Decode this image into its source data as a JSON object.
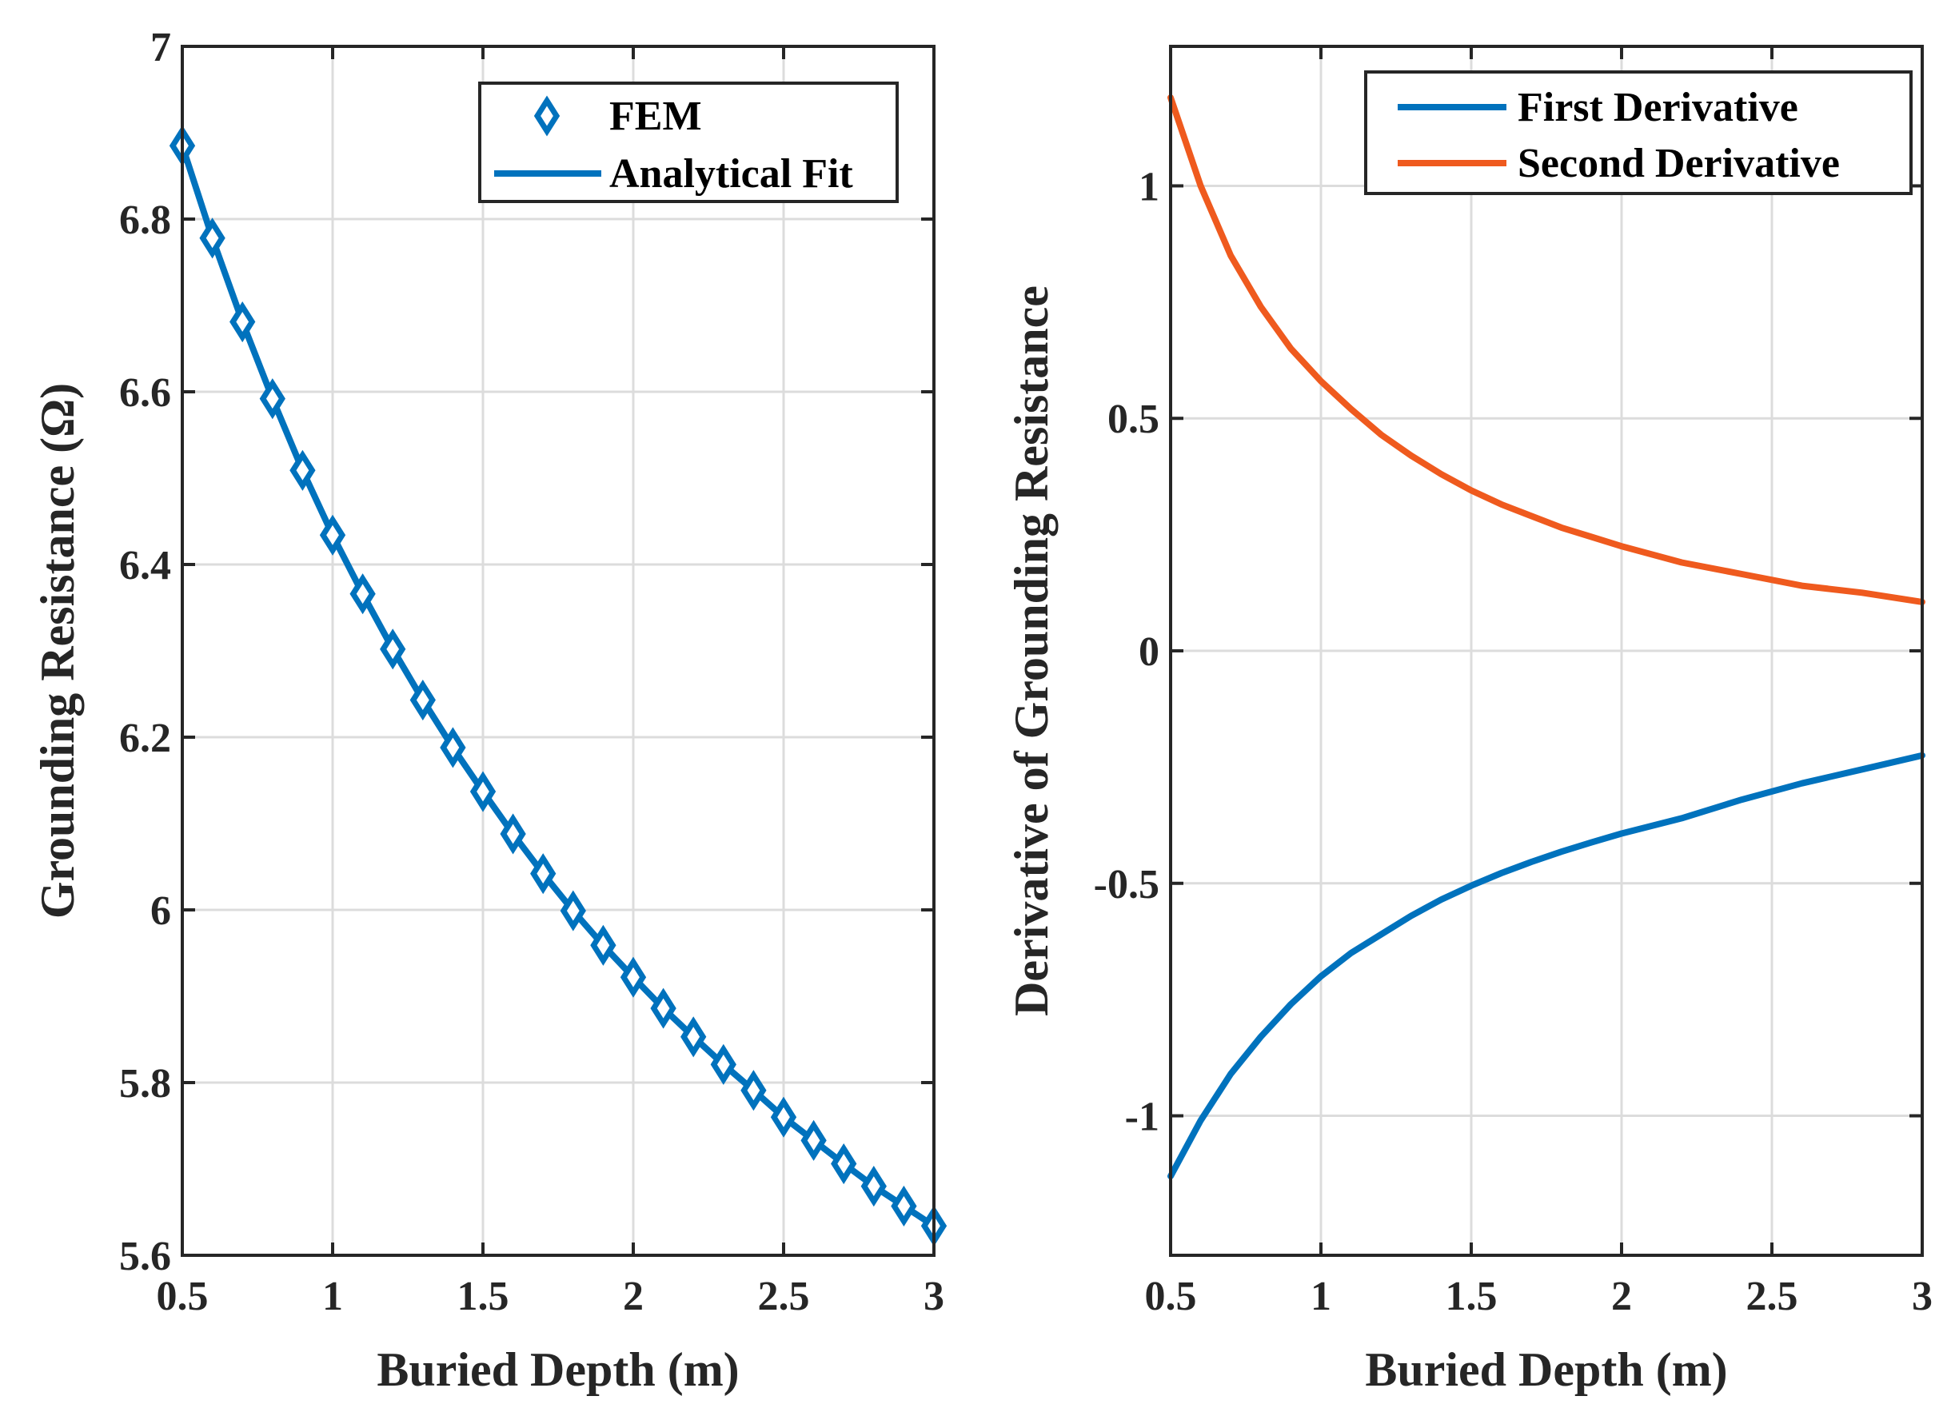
{
  "chart_data": [
    {
      "type": "line",
      "title": "",
      "xlabel": "Buried Depth (m)",
      "ylabel": "Grounding Resistance (Ω)",
      "xlim": [
        0.5,
        3
      ],
      "ylim": [
        5.6,
        7
      ],
      "xticks": [
        0.5,
        1,
        1.5,
        2,
        2.5,
        3
      ],
      "xtick_labels": [
        "0.5",
        "1",
        "1.5",
        "2",
        "2.5",
        "3"
      ],
      "yticks": [
        5.6,
        5.8,
        6,
        6.2,
        6.4,
        6.6,
        6.8,
        7
      ],
      "ytick_labels": [
        "5.6",
        "5.8",
        "6",
        "6.2",
        "6.4",
        "6.6",
        "6.8",
        "7"
      ],
      "grid": true,
      "legend_position": "top-right",
      "series": [
        {
          "name": "FEM",
          "style": "markers",
          "marker": "diamond",
          "color": "#0072BD",
          "x": [
            0.5,
            0.6,
            0.7,
            0.8,
            0.9,
            1.0,
            1.1,
            1.2,
            1.3,
            1.4,
            1.5,
            1.6,
            1.7,
            1.8,
            1.9,
            2.0,
            2.1,
            2.2,
            2.3,
            2.4,
            2.5,
            2.6,
            2.7,
            2.8,
            2.9,
            3.0
          ],
          "y": [
            6.885,
            6.778,
            6.681,
            6.592,
            6.509,
            6.434,
            6.366,
            6.302,
            6.243,
            6.188,
            6.137,
            6.088,
            6.042,
            5.999,
            5.959,
            5.922,
            5.886,
            5.853,
            5.821,
            5.791,
            5.76,
            5.733,
            5.706,
            5.68,
            5.657,
            5.634
          ]
        },
        {
          "name": "Analytical Fit",
          "style": "line",
          "color": "#0072BD",
          "x": [
            0.5,
            0.6,
            0.7,
            0.8,
            0.9,
            1.0,
            1.1,
            1.2,
            1.3,
            1.4,
            1.5,
            1.6,
            1.7,
            1.8,
            1.9,
            2.0,
            2.1,
            2.2,
            2.3,
            2.4,
            2.5,
            2.6,
            2.7,
            2.8,
            2.9,
            3.0
          ],
          "y": [
            6.885,
            6.778,
            6.681,
            6.592,
            6.509,
            6.434,
            6.366,
            6.302,
            6.243,
            6.188,
            6.137,
            6.088,
            6.042,
            5.999,
            5.959,
            5.922,
            5.886,
            5.853,
            5.821,
            5.791,
            5.76,
            5.733,
            5.706,
            5.68,
            5.657,
            5.634
          ]
        }
      ]
    },
    {
      "type": "line",
      "title": "",
      "xlabel": "Buried Depth (m)",
      "ylabel": "Derivative of Grounding Resistance",
      "xlim": [
        0.5,
        3
      ],
      "ylim": [
        -1.3,
        1.3
      ],
      "xticks": [
        0.5,
        1,
        1.5,
        2,
        2.5,
        3
      ],
      "xtick_labels": [
        "0.5",
        "1",
        "1.5",
        "2",
        "2.5",
        "3"
      ],
      "yticks": [
        -1,
        -0.5,
        0,
        0.5,
        1
      ],
      "ytick_labels": [
        "-1",
        "-0.5",
        "0",
        "0.5",
        "1"
      ],
      "grid": true,
      "legend_position": "top-right",
      "series": [
        {
          "name": "First Derivative",
          "style": "line",
          "color": "#0072BD",
          "x": [
            0.5,
            0.6,
            0.7,
            0.8,
            0.9,
            1.0,
            1.1,
            1.2,
            1.3,
            1.4,
            1.5,
            1.6,
            1.7,
            1.8,
            1.9,
            2.0,
            2.2,
            2.4,
            2.6,
            2.8,
            3.0
          ],
          "y": [
            -1.13,
            -1.01,
            -0.91,
            -0.83,
            -0.76,
            -0.7,
            -0.65,
            -0.61,
            -0.57,
            -0.535,
            -0.505,
            -0.478,
            -0.454,
            -0.432,
            -0.412,
            -0.393,
            -0.36,
            -0.32,
            -0.285,
            -0.255,
            -0.225
          ]
        },
        {
          "name": "Second Derivative",
          "style": "line",
          "color": "#EF5A1E",
          "x": [
            0.5,
            0.6,
            0.7,
            0.8,
            0.9,
            1.0,
            1.1,
            1.2,
            1.3,
            1.4,
            1.5,
            1.6,
            1.7,
            1.8,
            1.9,
            2.0,
            2.2,
            2.4,
            2.6,
            2.8,
            3.0
          ],
          "y": [
            1.19,
            1.0,
            0.85,
            0.74,
            0.65,
            0.58,
            0.52,
            0.465,
            0.42,
            0.38,
            0.345,
            0.315,
            0.29,
            0.265,
            0.245,
            0.225,
            0.19,
            0.165,
            0.14,
            0.125,
            0.105
          ]
        }
      ]
    }
  ]
}
